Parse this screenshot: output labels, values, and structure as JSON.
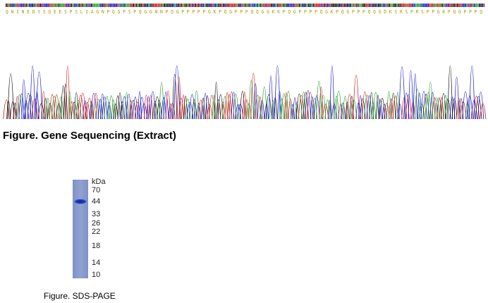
{
  "sequencing": {
    "protein_sequence": "Q N I N E D Y S Q E E S P S L I A G N P Q G P S P Q G G N N P Q G P P P P P G K P Q G P P P Q Q G G K K P Q G P P P P Q G K P Q G P P P Q Q G D K S R S P R S P P G K P Q G P P P Q",
    "caption": "Figure. Gene Sequencing (Extract)"
  },
  "sds_page": {
    "unit": "kDa",
    "markers": [
      "70",
      "44",
      "33",
      "26",
      "22",
      "18",
      "14",
      "10"
    ],
    "caption": "Figure. SDS-PAGE"
  }
}
